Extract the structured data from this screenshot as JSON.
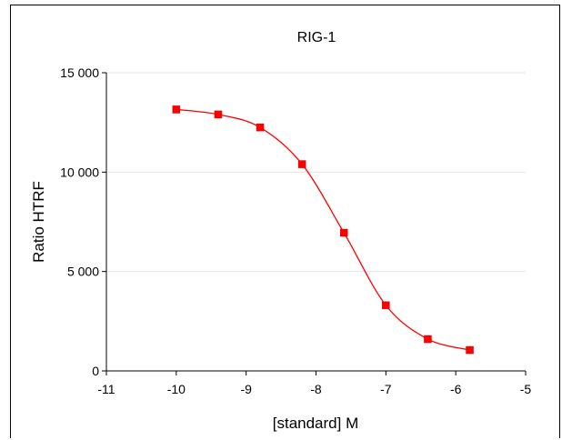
{
  "chart_data": {
    "type": "scatter",
    "title": "RIG-1",
    "xlabel": "[standard] M",
    "ylabel": "Ratio HTRF",
    "xlim": [
      -11,
      -5
    ],
    "ylim": [
      0,
      15000
    ],
    "x_ticks": [
      -11,
      -10,
      -9,
      -8,
      -7,
      -6,
      -5
    ],
    "y_ticks": [
      0,
      5000,
      10000,
      15000
    ],
    "x_tick_labels": [
      "-11",
      "-10",
      "-9",
      "-8",
      "-7",
      "-6",
      "-5"
    ],
    "y_tick_labels": [
      "0",
      "5 000",
      "10 000",
      "15 000"
    ],
    "grid": "horizontal",
    "legend": "none",
    "series": [
      {
        "x": [
          -10.0,
          -9.4,
          -8.8,
          -8.2,
          -7.6,
          -7.0,
          -6.4,
          -5.8
        ],
        "y": [
          13150,
          12900,
          12250,
          10400,
          6950,
          3300,
          1600,
          1050
        ],
        "marker": "square",
        "fit": "sigmoidal",
        "color": "#ff0000"
      }
    ]
  }
}
